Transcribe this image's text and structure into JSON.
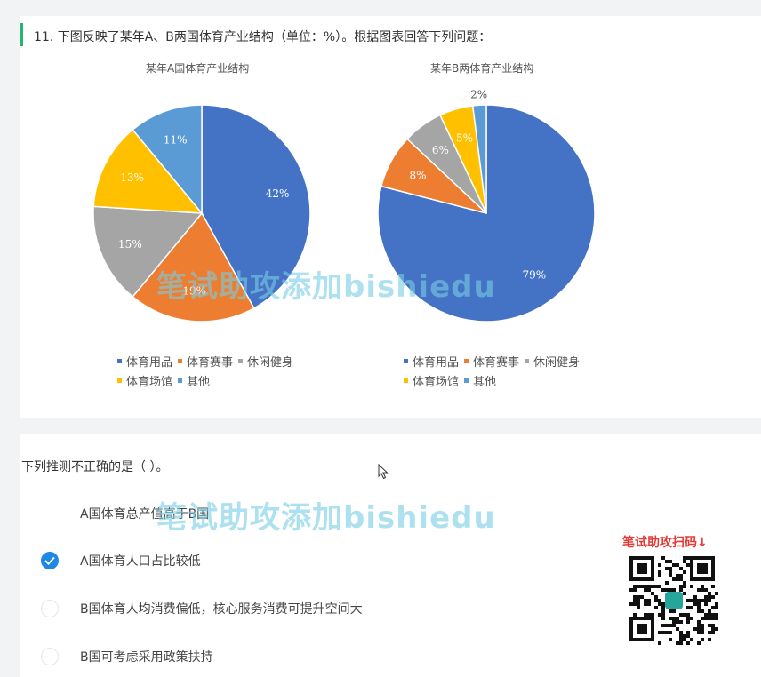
{
  "question": {
    "title": "11. 下图反映了某年A、B两国体育产业结构（单位：%）。根据图表回答下列问题：",
    "accent_color": "#22b573"
  },
  "chart_data": [
    {
      "type": "pie",
      "title": "某年A国体育产业结构",
      "categories": [
        "体育用品",
        "体育赛事",
        "休闲健身",
        "体育场馆",
        "其他"
      ],
      "values": [
        42,
        19,
        15,
        13,
        11
      ],
      "slice_labels": [
        "42%",
        "19%",
        "15%",
        "13%",
        "11%"
      ],
      "colors": [
        "#4472c4",
        "#ed7d31",
        "#a5a5a5",
        "#ffc000",
        "#5b9bd5"
      ],
      "legend": "bottom"
    },
    {
      "type": "pie",
      "title": "某年B两体育产业结构",
      "categories": [
        "体育用品",
        "体育赛事",
        "休闲健身",
        "体育场馆",
        "其他"
      ],
      "values": [
        79,
        8,
        6,
        5,
        2
      ],
      "slice_labels": [
        "79%",
        "8%",
        "6%",
        "5%",
        "2%"
      ],
      "colors": [
        "#4472c4",
        "#ed7d31",
        "#a5a5a5",
        "#ffc000",
        "#5b9bd5"
      ],
      "legend": "bottom"
    }
  ],
  "legend_a": {
    "row1": [
      "体育用品",
      "体育赛事",
      "休闲健身"
    ],
    "row2": [
      "体育场馆",
      "其他"
    ]
  },
  "legend_b": {
    "row1": [
      "体育用品",
      "体育赛事",
      "休闲健身"
    ],
    "row2": [
      "体育场馆",
      "其他"
    ]
  },
  "watermark": "笔试助攻添加bishiedu",
  "prompt": "下列推测不正确的是（ ）。",
  "options": [
    {
      "text": "A国体育总产值高于B国",
      "checked": false
    },
    {
      "text": "A国体育人口占比较低",
      "checked": true
    },
    {
      "text": "B国体育人均消费偏低，核心服务消费可提升空间大",
      "checked": false
    },
    {
      "text": "B国可考虑采用政策扶持",
      "checked": false
    }
  ],
  "qr": {
    "caption": "笔试助攻扫码↓",
    "icon": "qr-code-icon"
  },
  "colors": {
    "checked": "#1e88e5",
    "qr_caption": "#e53935"
  }
}
